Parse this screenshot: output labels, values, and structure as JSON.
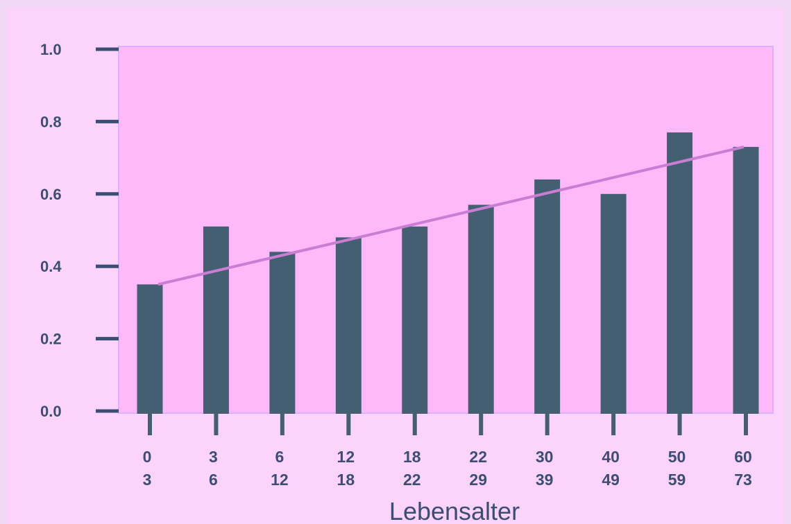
{
  "colors": {
    "page_background": "#f2d8f7",
    "panel_background": "#fbd3fb",
    "plot_background": "#ffb9f9",
    "plot_border": "#d8b2ff",
    "bar_color": "#455f72",
    "trend_color": "#c97dd3",
    "text_color": "#3c4e72"
  },
  "chart_data": {
    "type": "bar",
    "title": "",
    "xlabel": "Lebensalter",
    "ylabel": "",
    "ylim": [
      0.0,
      1.0
    ],
    "yticks": [
      0.0,
      0.2,
      0.4,
      0.6,
      0.8,
      1.0
    ],
    "ytick_labels": [
      "0.0",
      "0.2",
      "0.4",
      "0.6",
      "0.8",
      "1.0"
    ],
    "categories": [
      {
        "from": "0",
        "to": "3"
      },
      {
        "from": "3",
        "to": "6"
      },
      {
        "from": "6",
        "to": "12"
      },
      {
        "from": "12",
        "to": "18"
      },
      {
        "from": "18",
        "to": "22"
      },
      {
        "from": "22",
        "to": "29"
      },
      {
        "from": "30",
        "to": "39"
      },
      {
        "from": "40",
        "to": "49"
      },
      {
        "from": "50",
        "to": "59"
      },
      {
        "from": "60",
        "to": "73"
      }
    ],
    "values": [
      0.35,
      0.51,
      0.44,
      0.48,
      0.51,
      0.57,
      0.64,
      0.6,
      0.77,
      0.73
    ],
    "trend_line": {
      "start": 0.35,
      "end": 0.73
    },
    "grid": false,
    "legend": "none"
  }
}
